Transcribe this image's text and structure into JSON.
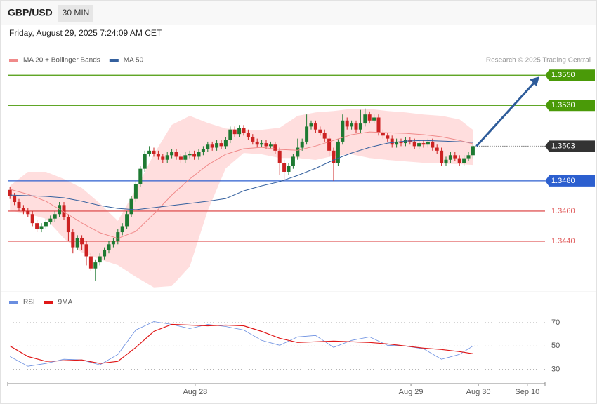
{
  "header": {
    "symbol": "GBP/USD",
    "timeframe": "30 MIN",
    "datetime": "Friday, August 29, 2025 7:24:09 AM CET",
    "credit": "Research © 2025 Trading Central"
  },
  "chart_data": [
    {
      "type": "candlestick",
      "xlim": [
        -0.5,
        119.03
      ],
      "ylim": [
        1.3407,
        1.3558
      ],
      "up_color": "#1e7a32",
      "down_color": "#cc2222",
      "band_color": "#ffdede",
      "open": [
        1.3474,
        1.347,
        1.3466,
        1.3462,
        1.346,
        1.3458,
        1.3452,
        1.3448,
        1.345,
        1.3453,
        1.3455,
        1.3458,
        1.3464,
        1.3456,
        1.3446,
        1.3436,
        1.3442,
        1.3438,
        1.343,
        1.3422,
        1.3426,
        1.343,
        1.3434,
        1.3438,
        1.344,
        1.3446,
        1.345,
        1.3458,
        1.3468,
        1.3478,
        1.3488,
        1.3498,
        1.35,
        1.3498,
        1.3496,
        1.3494,
        1.3497,
        1.3499,
        1.3496,
        1.3494,
        1.3497,
        1.3498,
        1.3496,
        1.3499,
        1.3501,
        1.3504,
        1.3502,
        1.3505,
        1.3503,
        1.3507,
        1.3514,
        1.3511,
        1.3515,
        1.3512,
        1.3509,
        1.3506,
        1.3504,
        1.3505,
        1.3503,
        1.3504,
        1.35,
        1.3492,
        1.3486,
        1.349,
        1.3496,
        1.3502,
        1.3506,
        1.3516,
        1.3518,
        1.3514,
        1.3512,
        1.3508,
        1.35,
        1.3492,
        1.3506,
        1.352,
        1.3516,
        1.3518,
        1.3514,
        1.3518,
        1.3524,
        1.352,
        1.3522,
        1.3512,
        1.351,
        1.3508,
        1.3504,
        1.3506,
        1.3505,
        1.3507,
        1.3506,
        1.3503,
        1.3505,
        1.3504,
        1.3506,
        1.3502,
        1.35,
        1.3492,
        1.3494,
        1.3497,
        1.3495,
        1.3492,
        1.3495,
        1.3497
      ],
      "high": [
        1.3476,
        1.3472,
        1.3468,
        1.3464,
        1.3462,
        1.346,
        1.3454,
        1.3452,
        1.3455,
        1.3457,
        1.346,
        1.3466,
        1.3466,
        1.3458,
        1.3448,
        1.3444,
        1.3444,
        1.344,
        1.3432,
        1.3428,
        1.3432,
        1.3436,
        1.344,
        1.3442,
        1.3448,
        1.3452,
        1.346,
        1.347,
        1.348,
        1.349,
        1.35,
        1.3503,
        1.3502,
        1.35,
        1.3498,
        1.3499,
        1.3501,
        1.3501,
        1.3498,
        1.3499,
        1.35,
        1.35,
        1.3501,
        1.3503,
        1.3506,
        1.3506,
        1.3507,
        1.3507,
        1.3509,
        1.3516,
        1.3516,
        1.3517,
        1.3517,
        1.3514,
        1.3511,
        1.3508,
        1.3507,
        1.3507,
        1.3506,
        1.3506,
        1.3502,
        1.3494,
        1.3492,
        1.3498,
        1.3508,
        1.3508,
        1.3524,
        1.352,
        1.352,
        1.3516,
        1.3514,
        1.351,
        1.3502,
        1.3508,
        1.3524,
        1.3522,
        1.352,
        1.352,
        1.3527,
        1.3528,
        1.3526,
        1.3524,
        1.3524,
        1.3514,
        1.3512,
        1.351,
        1.3508,
        1.3508,
        1.3509,
        1.3509,
        1.3508,
        1.3507,
        1.3507,
        1.3508,
        1.3508,
        1.3504,
        1.3502,
        1.3496,
        1.3499,
        1.3499,
        1.3497,
        1.3497,
        1.3499,
        1.3505
      ],
      "low": [
        1.3468,
        1.3464,
        1.346,
        1.3458,
        1.3456,
        1.345,
        1.3446,
        1.3446,
        1.3448,
        1.3451,
        1.3453,
        1.3456,
        1.3454,
        1.344,
        1.3432,
        1.3434,
        1.3434,
        1.3424,
        1.342,
        1.3414,
        1.3424,
        1.3428,
        1.3432,
        1.3436,
        1.3438,
        1.3444,
        1.3448,
        1.3456,
        1.3466,
        1.3476,
        1.3486,
        1.3496,
        1.3496,
        1.3494,
        1.3492,
        1.3492,
        1.3495,
        1.3494,
        1.3492,
        1.3492,
        1.3495,
        1.3494,
        1.3494,
        1.3497,
        1.3499,
        1.35,
        1.35,
        1.3501,
        1.3501,
        1.3505,
        1.3509,
        1.3509,
        1.351,
        1.3507,
        1.3504,
        1.3502,
        1.3502,
        1.3501,
        1.3501,
        1.3498,
        1.3484,
        1.348,
        1.3484,
        1.3488,
        1.3494,
        1.35,
        1.3504,
        1.3514,
        1.3512,
        1.351,
        1.3506,
        1.3496,
        1.348,
        1.349,
        1.3504,
        1.3514,
        1.3514,
        1.3512,
        1.3512,
        1.3516,
        1.3518,
        1.3518,
        1.351,
        1.3508,
        1.3506,
        1.3502,
        1.3502,
        1.3503,
        1.3503,
        1.3504,
        1.3501,
        1.3501,
        1.3502,
        1.3502,
        1.35,
        1.3498,
        1.349,
        1.349,
        1.3492,
        1.3493,
        1.349,
        1.349,
        1.3493,
        1.3495
      ],
      "close": [
        1.347,
        1.3466,
        1.3462,
        1.346,
        1.3458,
        1.3452,
        1.3448,
        1.345,
        1.3453,
        1.3455,
        1.3458,
        1.3464,
        1.3456,
        1.3446,
        1.3436,
        1.3442,
        1.3438,
        1.343,
        1.3422,
        1.3426,
        1.343,
        1.3434,
        1.3438,
        1.344,
        1.3446,
        1.345,
        1.3458,
        1.3468,
        1.3478,
        1.3488,
        1.3498,
        1.35,
        1.3498,
        1.3496,
        1.3494,
        1.3497,
        1.3499,
        1.3496,
        1.3494,
        1.3497,
        1.3498,
        1.3496,
        1.3499,
        1.3501,
        1.3504,
        1.3502,
        1.3505,
        1.3503,
        1.3507,
        1.3514,
        1.3511,
        1.3515,
        1.3512,
        1.3509,
        1.3506,
        1.3504,
        1.3505,
        1.3503,
        1.3504,
        1.35,
        1.3492,
        1.3486,
        1.349,
        1.3496,
        1.3502,
        1.3506,
        1.3516,
        1.3518,
        1.3514,
        1.3512,
        1.3508,
        1.35,
        1.3492,
        1.3506,
        1.352,
        1.3516,
        1.3518,
        1.3514,
        1.3518,
        1.3524,
        1.352,
        1.3522,
        1.3512,
        1.351,
        1.3508,
        1.3504,
        1.3506,
        1.3505,
        1.3507,
        1.3506,
        1.3503,
        1.3505,
        1.3504,
        1.3506,
        1.3502,
        1.35,
        1.3492,
        1.3494,
        1.3497,
        1.3495,
        1.3492,
        1.3495,
        1.3497,
        1.3503
      ],
      "series_x": [
        0,
        4,
        8,
        12,
        16,
        20,
        24,
        28,
        32,
        36,
        40,
        44,
        48,
        52,
        56,
        60,
        64,
        68,
        72,
        76,
        80,
        84,
        88,
        92,
        96,
        100,
        103
      ],
      "series": [
        {
          "name": "MA 20 + Bollinger Bands",
          "color": "#f08a8a",
          "values": [
            1.34744,
            1.34711,
            1.34665,
            1.34595,
            1.34521,
            1.34456,
            1.34419,
            1.34465,
            1.34581,
            1.34706,
            1.34813,
            1.34906,
            1.34976,
            1.35013,
            1.35022,
            1.35008,
            1.35003,
            1.35031,
            1.35068,
            1.35106,
            1.35124,
            1.35119,
            1.35115,
            1.35106,
            1.35092,
            1.35068,
            1.35045
          ],
          "upper": [
            1.34767,
            1.3486,
            1.3486,
            1.34813,
            1.34753,
            1.34651,
            1.34535,
            1.34744,
            1.34976,
            1.35171,
            1.35231,
            1.35184,
            1.35147,
            1.35138,
            1.35138,
            1.35152,
            1.35231,
            1.35254,
            1.35263,
            1.35277,
            1.35277,
            1.35263,
            1.35254,
            1.3524,
            1.35231,
            1.35208,
            1.35138
          ],
          "lower": [
            1.34604,
            1.34581,
            1.34549,
            1.34419,
            1.34326,
            1.3428,
            1.34242,
            1.34164,
            1.34094,
            1.34103,
            1.34233,
            1.34604,
            1.34883,
            1.34985,
            1.34976,
            1.34952,
            1.34952,
            1.34939,
            1.34966,
            1.34976,
            1.34952,
            1.34939,
            1.34929,
            1.3492,
            1.34915,
            1.34911,
            1.34906
          ]
        },
        {
          "name": "MA 50",
          "color": "#34609e",
          "values": [
            1.34706,
            1.34702,
            1.34697,
            1.34688,
            1.34665,
            1.34637,
            1.34618,
            1.34609,
            1.34623,
            1.34637,
            1.34651,
            1.34665,
            1.34683,
            1.34734,
            1.34767,
            1.34795,
            1.34836,
            1.34883,
            1.34939,
            1.34985,
            1.35022,
            1.3505,
            1.35064,
            1.35068,
            1.35064,
            1.35059,
            1.35055
          ]
        }
      ],
      "levels": [
        {
          "value": 1.355,
          "label": "1.3550",
          "color": "#4a9a08",
          "tag": "box",
          "style": "solid"
        },
        {
          "value": 1.353,
          "label": "1.3530",
          "color": "#4a9a08",
          "tag": "box",
          "style": "solid"
        },
        {
          "value": 1.3503,
          "label": "1.3503",
          "color": "#333333",
          "tag": "box",
          "style": "dotted"
        },
        {
          "value": 1.348,
          "label": "1.3480",
          "color": "#2c5fcf",
          "tag": "box",
          "style": "solid"
        },
        {
          "value": 1.346,
          "label": "1.3460",
          "color": "#e05a5a",
          "tag": "text",
          "style": "solid"
        },
        {
          "value": 1.344,
          "label": "1.3440",
          "color": "#e05a5a",
          "tag": "text",
          "style": "solid"
        }
      ]
    },
    {
      "type": "line",
      "xlim": [
        -0.5,
        119.03
      ],
      "ylim": [
        19,
        82
      ],
      "yticks": [
        30,
        50,
        70
      ],
      "grid": true,
      "xticks": [
        {
          "value": 41.2,
          "label": "Aug 28"
        },
        {
          "value": 89.2,
          "label": "Aug 29"
        },
        {
          "value": 104.2,
          "label": "Aug 30"
        },
        {
          "value": 115.1,
          "label": "Sep 10"
        }
      ],
      "x": [
        0,
        4,
        8,
        12,
        16,
        20,
        24,
        28,
        32,
        36,
        40,
        44,
        48,
        52,
        56,
        60,
        64,
        68,
        72,
        76,
        80,
        84,
        88,
        92,
        96,
        100,
        103
      ],
      "series": [
        {
          "name": "RSI",
          "color": "#6a8ee0",
          "values": [
            41.0,
            32.7,
            35.1,
            38.7,
            38.1,
            33.9,
            42.8,
            63.7,
            70.9,
            68.5,
            64.9,
            68.5,
            66.7,
            63.7,
            54.8,
            50.6,
            57.8,
            59.0,
            48.8,
            54.8,
            57.8,
            50.6,
            50.0,
            47.6,
            38.7,
            42.8,
            50.0
          ]
        },
        {
          "name": "9MA",
          "color": "#e01818",
          "values": [
            50.0,
            41.0,
            36.9,
            37.5,
            38.1,
            35.1,
            36.9,
            48.8,
            62.5,
            68.5,
            67.9,
            67.3,
            67.9,
            67.3,
            62.5,
            56.6,
            53.0,
            53.6,
            54.2,
            53.6,
            53.0,
            51.8,
            50.0,
            48.2,
            47.0,
            45.2,
            43.4
          ]
        }
      ]
    }
  ]
}
